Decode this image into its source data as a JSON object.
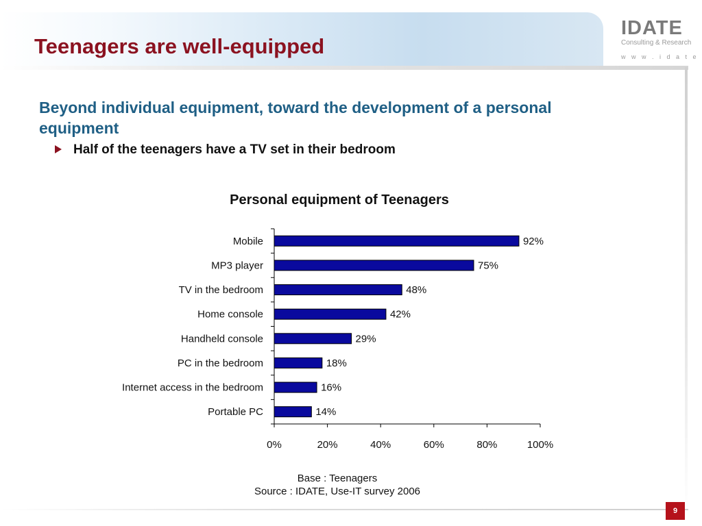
{
  "slide": {
    "title": "Teenagers are well-equipped",
    "subtitle": "Beyond individual equipment, toward the development of a personal equipment",
    "bullet": "Half of the teenagers have a TV set in their bedroom",
    "page_number": "9"
  },
  "logo": {
    "name": "IDATE",
    "tagline": "Consulting & Research",
    "url": "w w w . i d a t e . o r g"
  },
  "footer": {
    "base": "Base : Teenagers",
    "source": "Source : IDATE, Use-IT survey 2006"
  },
  "colors": {
    "title": "#8b1220",
    "subtitle": "#1f5f85",
    "bar_fill": "#0a0a9e",
    "page_badge": "#b5121b"
  },
  "chart_data": {
    "type": "bar",
    "orientation": "horizontal",
    "title": "Personal equipment of Teenagers",
    "categories": [
      "Mobile",
      "MP3 player",
      "TV in the bedroom",
      "Home console",
      "Handheld console",
      "PC in the bedroom",
      "Internet access in the bedroom",
      "Portable PC"
    ],
    "values": [
      92,
      75,
      48,
      42,
      29,
      18,
      16,
      14
    ],
    "data_labels": [
      "92%",
      "75%",
      "48%",
      "42%",
      "29%",
      "18%",
      "16%",
      "14%"
    ],
    "xlim": [
      0,
      100
    ],
    "xticks": [
      0,
      20,
      40,
      60,
      80,
      100
    ],
    "xtick_labels": [
      "0%",
      "20%",
      "40%",
      "60%",
      "80%",
      "100%"
    ],
    "grid": false,
    "legend": false
  }
}
